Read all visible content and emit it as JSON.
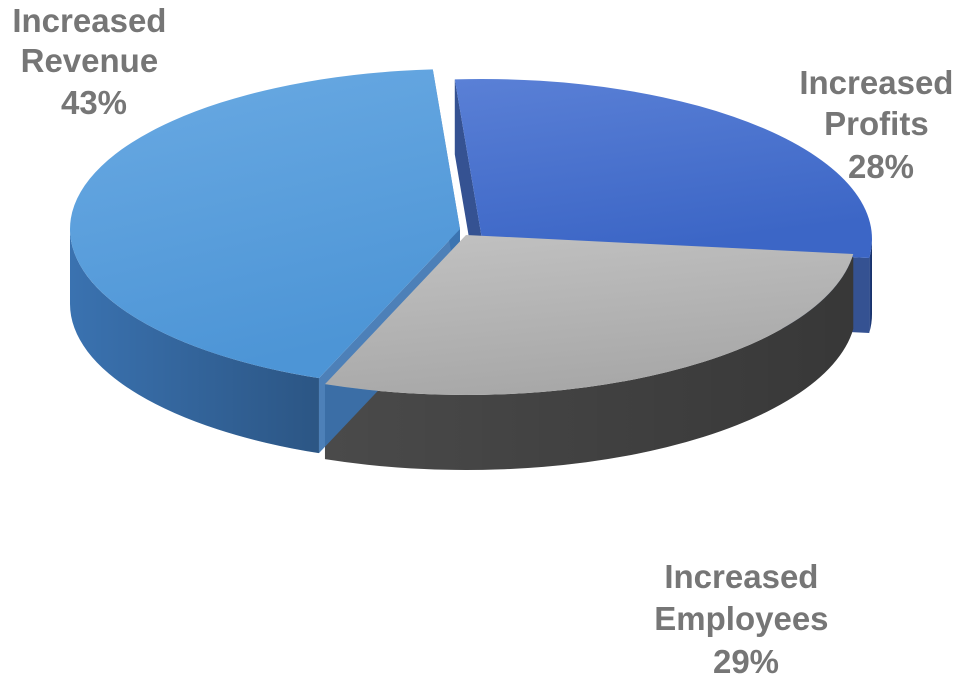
{
  "chart_data": {
    "type": "pie",
    "title": "",
    "slices": [
      {
        "label_lines": [
          "Increased",
          "Profits"
        ],
        "value": 28,
        "value_label": "28%",
        "colors": {
          "top": "#3c66c6",
          "top_light": "#5a80d6",
          "side": "#1f3f86"
        }
      },
      {
        "label_lines": [
          "Increased",
          "Employees"
        ],
        "value": 29,
        "value_label": "29%",
        "colors": {
          "top": "#a8a8a8",
          "top_light": "#c2c2c2",
          "side": "#4a4a4a"
        }
      },
      {
        "label_lines": [
          "Increased",
          "Revenue"
        ],
        "value": 43,
        "value_label": "43%",
        "colors": {
          "top": "#4d95d6",
          "top_light": "#6aaae3",
          "side": "#3a72b0"
        }
      }
    ],
    "legend": "none"
  }
}
